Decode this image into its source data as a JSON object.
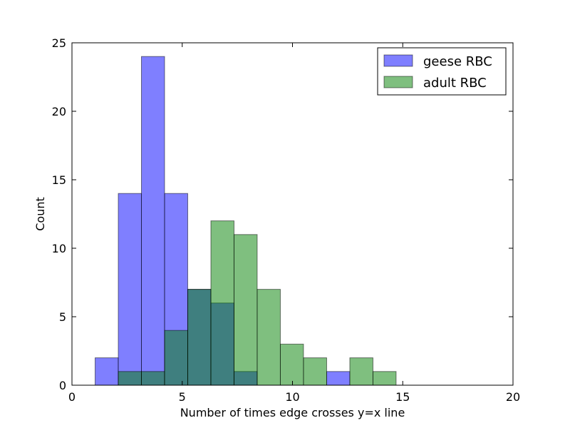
{
  "chart_data": {
    "type": "bar",
    "xlabel": "Number of times edge crosses y=x line",
    "ylabel": "Count",
    "xlim": [
      0,
      20
    ],
    "ylim": [
      0,
      25
    ],
    "xticks": [
      0,
      5,
      10,
      15,
      20
    ],
    "yticks": [
      0,
      5,
      10,
      15,
      20,
      25
    ],
    "legend_position": "top-right",
    "grid": false,
    "series": [
      {
        "name": "geese RBC",
        "color": "#8080ff",
        "bins": [
          [
            1.05,
            2.1
          ],
          [
            2.1,
            3.15
          ],
          [
            3.15,
            4.2
          ],
          [
            4.2,
            5.25
          ],
          [
            5.25,
            6.3
          ],
          [
            6.3,
            7.35
          ],
          [
            7.35,
            8.4
          ],
          [
            8.4,
            9.45
          ],
          [
            9.45,
            10.5
          ],
          [
            10.5,
            11.55
          ],
          [
            11.55,
            12.6
          ]
        ],
        "values": [
          2,
          14,
          24,
          14,
          7,
          6,
          1,
          0,
          0,
          0,
          1
        ]
      },
      {
        "name": "adult RBC",
        "color": "#80c080",
        "bins": [
          [
            2.1,
            3.15
          ],
          [
            3.15,
            4.2
          ],
          [
            4.2,
            5.25
          ],
          [
            5.25,
            6.3
          ],
          [
            6.3,
            7.35
          ],
          [
            7.35,
            8.4
          ],
          [
            8.4,
            9.45
          ],
          [
            9.45,
            10.5
          ],
          [
            10.5,
            11.55
          ],
          [
            11.55,
            12.6
          ],
          [
            12.6,
            13.65
          ],
          [
            13.65,
            14.7
          ]
        ],
        "values": [
          1,
          1,
          4,
          7,
          12,
          11,
          7,
          3,
          2,
          0,
          2,
          1
        ]
      }
    ]
  }
}
